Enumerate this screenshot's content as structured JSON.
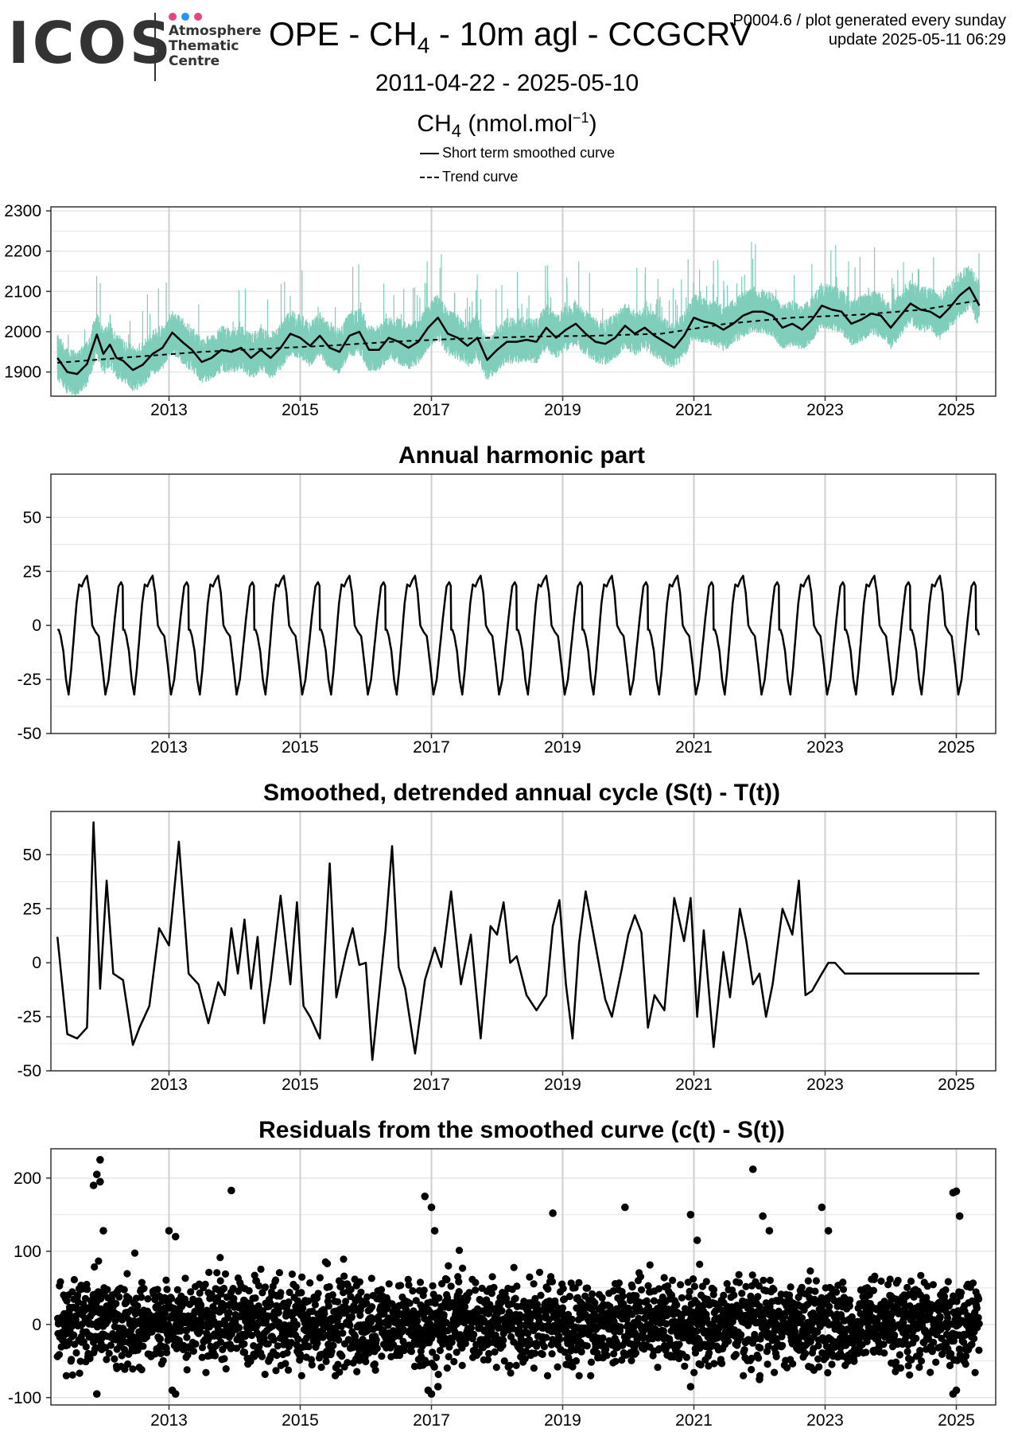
{
  "header": {
    "logo_text": "ICOS",
    "org_lines": [
      "Atmosphere",
      "Thematic",
      "Centre"
    ],
    "dot_colors": [
      "#e6467d",
      "#2196f3",
      "#e6467d"
    ],
    "title_prefix": "OPE - CH",
    "title_sub": "4",
    "title_suffix": " - 10m agl - CCGCRV",
    "meta_line1": "P0004.6 / plot generated every sunday",
    "meta_line2": "update  2025-05-11 06:29",
    "date_range": "2011-04-22 - 2025-05-10",
    "unit_prefix": "CH",
    "unit_sub": "4",
    "unit_mid": " (nmol.mol",
    "unit_sup": "−1",
    "unit_suffix": ")",
    "legend_short": "Short term smoothed curve",
    "legend_trend": "Trend curve"
  },
  "colors": {
    "observations": "#7fcdbb",
    "line": "#000000",
    "grid": "#e6e6e6",
    "grid_major_x": "#cfcfcf"
  },
  "chart_data": [
    {
      "type": "line",
      "title": "",
      "xlabel": "",
      "ylabel": "",
      "xlim": [
        2011.2,
        2025.6
      ],
      "ylim": [
        1840,
        2310
      ],
      "xticks": [
        2013,
        2015,
        2017,
        2019,
        2021,
        2023,
        2025
      ],
      "yticks": [
        1900,
        2000,
        2100,
        2200,
        2300
      ],
      "grid": true,
      "series": [
        {
          "name": "Short term smoothed curve",
          "style": "solid",
          "x": [
            2011.3,
            2011.45,
            2011.6,
            2011.75,
            2011.9,
            2012.0,
            2012.1,
            2012.2,
            2012.3,
            2012.45,
            2012.6,
            2012.75,
            2012.9,
            2013.05,
            2013.2,
            2013.35,
            2013.5,
            2013.65,
            2013.8,
            2013.95,
            2014.1,
            2014.25,
            2014.4,
            2014.55,
            2014.7,
            2014.85,
            2015.0,
            2015.15,
            2015.3,
            2015.45,
            2015.6,
            2015.75,
            2015.9,
            2016.05,
            2016.2,
            2016.35,
            2016.5,
            2016.65,
            2016.8,
            2016.95,
            2017.1,
            2017.25,
            2017.4,
            2017.55,
            2017.7,
            2017.85,
            2018.0,
            2018.15,
            2018.3,
            2018.45,
            2018.6,
            2018.75,
            2018.9,
            2019.05,
            2019.2,
            2019.35,
            2019.5,
            2019.65,
            2019.8,
            2019.95,
            2020.1,
            2020.25,
            2020.4,
            2020.55,
            2020.7,
            2020.85,
            2021.0,
            2021.15,
            2021.3,
            2021.45,
            2021.6,
            2021.75,
            2021.9,
            2022.05,
            2022.2,
            2022.35,
            2022.5,
            2022.65,
            2022.8,
            2022.95,
            2023.1,
            2023.25,
            2023.4,
            2023.55,
            2023.7,
            2023.85,
            2024.0,
            2024.15,
            2024.3,
            2024.45,
            2024.6,
            2024.75,
            2024.9,
            2025.05,
            2025.2,
            2025.35
          ],
          "y": [
            1935,
            1900,
            1895,
            1920,
            1993,
            1945,
            1968,
            1935,
            1928,
            1905,
            1918,
            1945,
            1960,
            1998,
            1975,
            1955,
            1925,
            1935,
            1955,
            1950,
            1960,
            1935,
            1955,
            1935,
            1960,
            1995,
            1985,
            1965,
            1990,
            1960,
            1950,
            1990,
            2000,
            1955,
            1955,
            1985,
            1975,
            1960,
            1975,
            2010,
            2035,
            1995,
            1985,
            1965,
            1985,
            1930,
            1955,
            1975,
            1975,
            1980,
            1975,
            2010,
            1985,
            2005,
            2020,
            1995,
            1975,
            1970,
            1985,
            2015,
            1995,
            2010,
            1990,
            1975,
            1960,
            1990,
            2035,
            2025,
            2020,
            2005,
            2020,
            2040,
            2050,
            2050,
            2040,
            2010,
            2020,
            2005,
            2030,
            2065,
            2055,
            2050,
            2020,
            2030,
            2045,
            2040,
            2010,
            2040,
            2070,
            2055,
            2050,
            2035,
            2060,
            2090,
            2110,
            2065
          ]
        },
        {
          "name": "Trend curve",
          "style": "dashed",
          "x": [
            2011.3,
            2012.5,
            2013.5,
            2014.5,
            2015.5,
            2016.5,
            2017.5,
            2018.5,
            2019.5,
            2020.5,
            2021.5,
            2022.5,
            2023.5,
            2024.5,
            2025.35
          ],
          "y": [
            1923,
            1938,
            1950,
            1958,
            1966,
            1976,
            1983,
            1988,
            1990,
            1995,
            2020,
            2035,
            2042,
            2055,
            2078
          ]
        }
      ]
    },
    {
      "type": "line",
      "title": "Annual harmonic part",
      "xlabel": "",
      "ylabel": "",
      "xlim": [
        2011.2,
        2025.6
      ],
      "ylim": [
        -50,
        70
      ],
      "xticks": [
        2013,
        2015,
        2017,
        2019,
        2021,
        2023,
        2025
      ],
      "yticks": [
        -50,
        -25,
        0,
        25,
        50
      ],
      "grid": true,
      "periodic_shape": {
        "period_years": 1,
        "phase": [
          0.0,
          0.02,
          0.05,
          0.09,
          0.13,
          0.17,
          0.21,
          0.25,
          0.29,
          0.33,
          0.37,
          0.41,
          0.45,
          0.49,
          0.53,
          0.58,
          0.63,
          0.68,
          0.73,
          0.78,
          0.83,
          0.88,
          0.93,
          0.97,
          1.0
        ],
        "values": [
          -2,
          -2,
          -5,
          -12,
          -25,
          -32,
          -20,
          -5,
          10,
          19,
          18,
          21,
          23,
          15,
          0,
          -3,
          -5,
          -18,
          -32,
          -25,
          -10,
          5,
          18,
          20,
          18
        ]
      },
      "series": [
        {
          "name": "Annual harmonic",
          "x_start": 2011.3,
          "x_end": 2025.35,
          "phase_origin": 2011.3
        }
      ]
    },
    {
      "type": "line",
      "title": "Smoothed, detrended annual cycle (S(t) - T(t))",
      "xlabel": "",
      "ylabel": "",
      "xlim": [
        2011.2,
        2025.6
      ],
      "ylim": [
        -50,
        70
      ],
      "xticks": [
        2013,
        2015,
        2017,
        2019,
        2021,
        2023,
        2025
      ],
      "yticks": [
        -50,
        -25,
        0,
        25,
        50
      ],
      "grid": true,
      "series": [
        {
          "name": "S(t) - T(t)",
          "x": [
            2011.3,
            2011.45,
            2011.6,
            2011.75,
            2011.85,
            2011.95,
            2012.05,
            2012.15,
            2012.3,
            2012.45,
            2012.55,
            2012.7,
            2012.85,
            2013.0,
            2013.15,
            2013.3,
            2013.45,
            2013.6,
            2013.75,
            2013.85,
            2013.95,
            2014.05,
            2014.15,
            2014.25,
            2014.35,
            2014.45,
            2014.55,
            2014.7,
            2014.85,
            2014.95,
            2015.05,
            2015.15,
            2015.3,
            2015.45,
            2015.55,
            2015.7,
            2015.8,
            2015.9,
            2016.0,
            2016.1,
            2016.2,
            2016.3,
            2016.4,
            2016.5,
            2016.6,
            2016.75,
            2016.9,
            2017.05,
            2017.15,
            2017.3,
            2017.45,
            2017.6,
            2017.75,
            2017.9,
            2018.0,
            2018.1,
            2018.2,
            2018.3,
            2018.45,
            2018.6,
            2018.75,
            2018.85,
            2018.95,
            2019.05,
            2019.15,
            2019.25,
            2019.35,
            2019.5,
            2019.65,
            2019.75,
            2019.9,
            2020.0,
            2020.1,
            2020.2,
            2020.3,
            2020.4,
            2020.55,
            2020.7,
            2020.85,
            2020.95,
            2021.05,
            2021.15,
            2021.3,
            2021.45,
            2021.55,
            2021.7,
            2021.8,
            2021.9,
            2022.0,
            2022.1,
            2022.2,
            2022.35,
            2022.5,
            2022.6,
            2022.7,
            2022.8,
            2022.95,
            2023.05,
            2023.15,
            2023.3,
            2023.4,
            2023.5,
            2023.6,
            2023.7,
            2023.8,
            2023.9,
            2024.0,
            2024.1,
            2024.2,
            2024.3,
            2024.45,
            2024.55,
            2024.65,
            2024.75,
            2024.9,
            2025.0,
            2025.1,
            2025.2,
            2025.3,
            2025.35
          ],
          "y": [
            12,
            -33,
            -35,
            -30,
            65,
            -12,
            38,
            -5,
            -8,
            -38,
            -30,
            -20,
            16,
            8,
            56,
            -5,
            -10,
            -28,
            -9,
            -15,
            16,
            -5,
            20,
            -12,
            12,
            -28,
            -8,
            31,
            -10,
            28,
            -20,
            -25,
            -35,
            46,
            -16,
            5,
            16,
            -1,
            0,
            -45,
            -15,
            15,
            54,
            -2,
            -12,
            -42,
            -8,
            7,
            -2,
            33,
            -10,
            13,
            -35,
            17,
            13,
            28,
            0,
            3,
            -15,
            -22,
            -15,
            17,
            29,
            -10,
            -35,
            9,
            33,
            8,
            -17,
            -25,
            -3,
            13,
            22,
            14,
            -30,
            -15,
            -22,
            30,
            10,
            30,
            -25,
            15,
            -39,
            5,
            -16,
            25,
            10,
            -10,
            -5,
            -25,
            -10,
            25,
            13,
            38,
            -15,
            -13,
            -5,
            0,
            0,
            -5,
            -5,
            -5,
            -5,
            -5,
            -5,
            -5,
            -5,
            -5,
            -5,
            -5,
            -5,
            -5,
            -5,
            -5,
            -5,
            -5,
            -5,
            -5,
            -5,
            -5
          ]
        }
      ]
    },
    {
      "type": "scatter",
      "title": "Residuals from the smoothed curve (c(t) - S(t))",
      "xlabel": "",
      "ylabel": "",
      "xlim": [
        2011.2,
        2025.6
      ],
      "ylim": [
        -110,
        240
      ],
      "xticks": [
        2013,
        2015,
        2017,
        2019,
        2021,
        2023,
        2025
      ],
      "yticks": [
        -100,
        0,
        100,
        200
      ],
      "grid": true,
      "series": [
        {
          "name": "Residuals",
          "x": [
            2011.85,
            2011.9,
            2011.95,
            2011.95,
            2012.0,
            2013.0,
            2013.1,
            2013.95,
            2016.9,
            2017.0,
            2017.05,
            2018.85,
            2019.95,
            2020.95,
            2021.05,
            2021.9,
            2022.05,
            2022.15,
            2022.95,
            2023.05,
            2024.95,
            2025.0,
            2025.05,
            2011.9,
            2013.1,
            2013.05,
            2016.95,
            2017.0,
            2017.1,
            2020.95,
            2022.0,
            2024.95,
            2025.0
          ],
          "y": [
            190,
            205,
            225,
            195,
            128,
            128,
            120,
            183,
            175,
            160,
            128,
            152,
            160,
            150,
            115,
            212,
            148,
            128,
            160,
            128,
            180,
            182,
            148,
            -95,
            -95,
            -90,
            -90,
            -95,
            -85,
            -85,
            -75,
            -95,
            -90
          ]
        }
      ],
      "note": "dense cloud of daily residuals mostly between -60 and 80"
    }
  ]
}
